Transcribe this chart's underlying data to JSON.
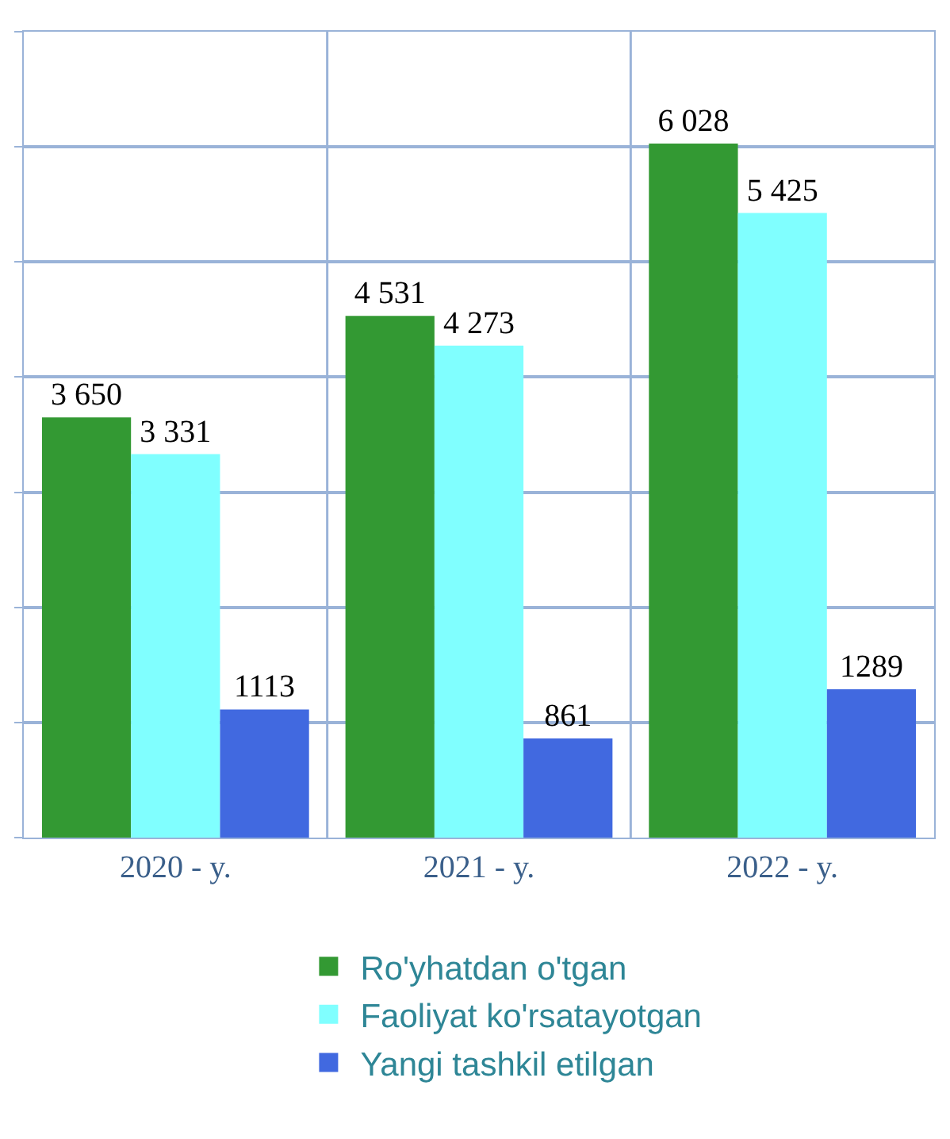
{
  "chart_data": {
    "type": "bar",
    "categories": [
      "2020 - y.",
      "2021 - y.",
      "2022 - y."
    ],
    "series": [
      {
        "name": "Ro'yhatdan o'tgan",
        "color": "#339933",
        "values": [
          3650,
          4531,
          6028
        ],
        "value_labels": [
          "3 650",
          "4 531",
          "6 028"
        ]
      },
      {
        "name": "Faoliyat ko'rsatayotgan",
        "color": "#80ffff",
        "values": [
          3331,
          4273,
          5425
        ],
        "value_labels": [
          "3 331",
          "4 273",
          "5 425"
        ]
      },
      {
        "name": "Yangi tashkil etilgan",
        "color": "#4169e0",
        "values": [
          1113,
          861,
          1289
        ],
        "value_labels": [
          "1113",
          "861",
          "1289"
        ]
      }
    ],
    "ylim": [
      0,
      7000
    ],
    "yticks": [
      {
        "value": 0,
        "label": null
      },
      {
        "value": 1000,
        "label": null
      },
      {
        "value": 2000,
        "label": null
      },
      {
        "value": 3000,
        "label": null
      },
      {
        "value": 4000,
        "label": null
      },
      {
        "value": 5000,
        "label": null
      },
      {
        "value": 6000,
        "label": null
      },
      {
        "value": 7000,
        "label": null
      }
    ],
    "tick_labels": "x",
    "grid": true,
    "legend": "bottom"
  }
}
